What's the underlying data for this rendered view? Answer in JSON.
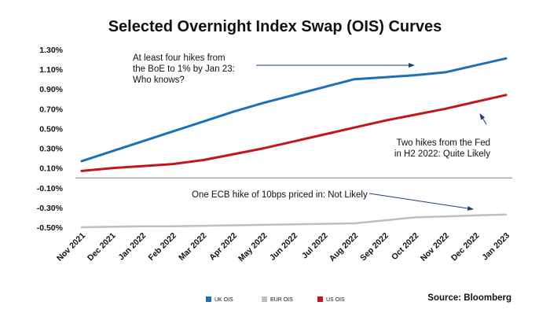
{
  "chart_data": {
    "type": "line",
    "title": "Selected Overnight Index Swap (OIS) Curves",
    "source": "Source: Bloomberg",
    "xlabel": "",
    "ylabel": "",
    "categories": [
      "Nov 2021",
      "Dec 2021",
      "Jan 2022",
      "Feb 2022",
      "Mar 2022",
      "Apr 2022",
      "May 2022",
      "Jun 2022",
      "Jul 2022",
      "Aug 2022",
      "Sep 2022",
      "Oct 2022",
      "Nov 2022",
      "Dec 2022",
      "Jan 2023"
    ],
    "ylim": [
      -0.55,
      1.35
    ],
    "y_ticks": [
      1.3,
      1.1,
      0.9,
      0.7,
      0.5,
      0.3,
      0.1,
      -0.1,
      -0.3,
      -0.5
    ],
    "y_tick_labels": [
      "1.30%",
      "1.10%",
      "0.90%",
      "0.70%",
      "0.50%",
      "0.30%",
      "0.10%",
      "-0.10%",
      "-0.30%",
      "-0.50%"
    ],
    "grid": false,
    "legend_position": "bottom",
    "series": [
      {
        "name": "UK OIS",
        "color": "#1f6fb5",
        "values": [
          0.17,
          0.27,
          0.37,
          0.47,
          0.57,
          0.67,
          0.76,
          0.84,
          0.92,
          1.0,
          1.02,
          1.04,
          1.07,
          1.14,
          1.21
        ]
      },
      {
        "name": "EUR OIS",
        "color": "#bfbfbf",
        "values": [
          -0.5,
          -0.495,
          -0.49,
          -0.49,
          -0.485,
          -0.48,
          -0.475,
          -0.47,
          -0.465,
          -0.46,
          -0.43,
          -0.4,
          -0.39,
          -0.38,
          -0.37
        ]
      },
      {
        "name": "US OIS",
        "color": "#c0161c",
        "values": [
          0.07,
          0.1,
          0.12,
          0.14,
          0.18,
          0.24,
          0.3,
          0.37,
          0.44,
          0.51,
          0.58,
          0.64,
          0.7,
          0.77,
          0.84
        ]
      }
    ],
    "annotations": [
      {
        "lines": [
          "At least four hikes from",
          "the BoE to 1% by Jan 23:",
          "Who knows?"
        ],
        "target_series": "UK OIS"
      },
      {
        "lines": [
          "Two hikes from the Fed",
          "in H2 2022: Quite Likely"
        ],
        "target_series": "US OIS"
      },
      {
        "lines": [
          "One ECB hike of 10bps priced in: Not Likely"
        ],
        "target_series": "EUR OIS"
      }
    ]
  }
}
